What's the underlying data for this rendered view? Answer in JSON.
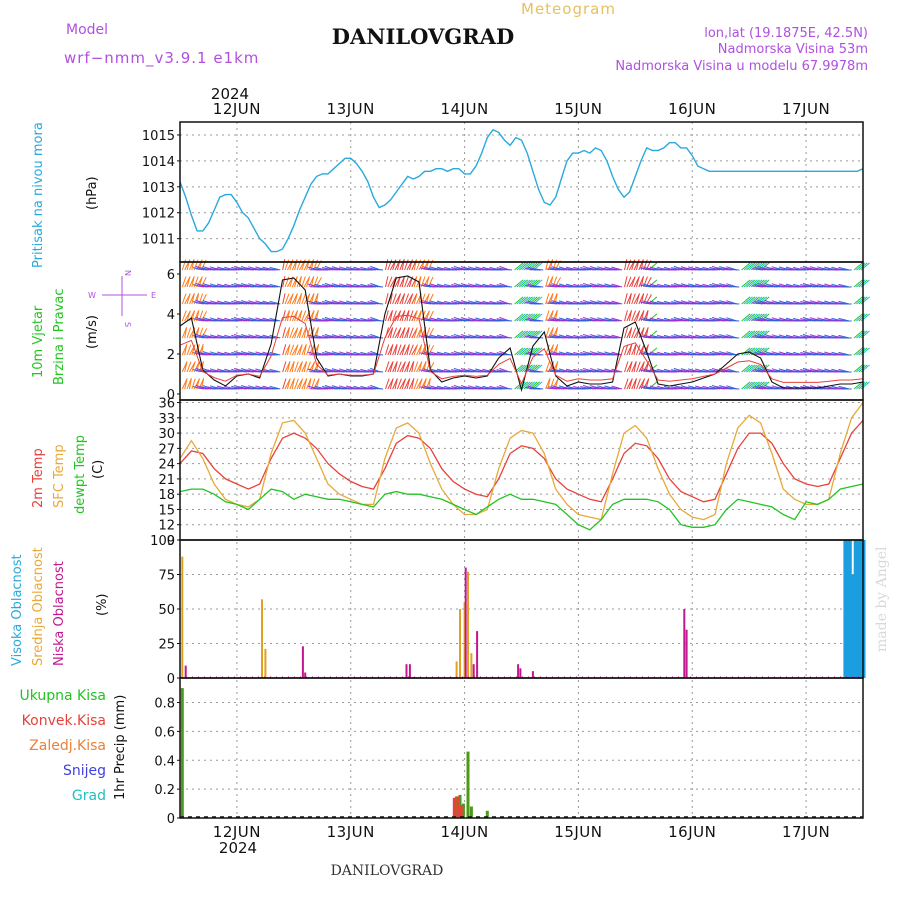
{
  "header": {
    "model_label": "Model",
    "model_name": "wrf−nmm_v3.9.1 e1km",
    "meteogram_label": "Meteogram",
    "station": "DANILOVGRAD",
    "coords": "lon,lat (19.1875E, 42.5N)",
    "elevation": "Nadmorska Visina 53m",
    "model_elevation": "Nadmorska Visina u modelu 67.9978m",
    "footer_station": "DANILOVGRAD",
    "credit": "made by Angel"
  },
  "colors": {
    "pressure": "#29a9df",
    "temp2m": "#e8413a",
    "sfc": "#e8a93a",
    "dewpt": "#22c422",
    "high_cloud": "#1a9ee0",
    "mid_cloud": "#e0a020",
    "low_cloud": "#c0188f",
    "precip_total": "#4c9a1c",
    "precip_conv": "#e8413a",
    "purple": "#b050e0"
  },
  "time_axis": {
    "year": "2024",
    "days": [
      "12JUN",
      "13JUN",
      "14JUN",
      "15JUN",
      "16JUN",
      "17JUN"
    ]
  },
  "panels": {
    "pressure": {
      "label1": "Pritisak na nivou mora",
      "unit": "(hPa)",
      "ticks": [
        "1011",
        "1012",
        "1013",
        "1014",
        "1015"
      ]
    },
    "wind": {
      "label1": "10m Vjetar",
      "label2": "Brzina i Pravac",
      "unit": "(m/s)",
      "ticks": [
        "0",
        "2",
        "4",
        "6"
      ],
      "compass_n": "N",
      "compass_s": "S",
      "compass_w": "W",
      "compass_e": "E"
    },
    "temperature": {
      "label1": "2m Temp",
      "label2": "SFC Temp",
      "label3": "dewpt Temp",
      "unit": "(C)",
      "ticks": [
        "9",
        "12",
        "15",
        "18",
        "21",
        "24",
        "27",
        "30",
        "33",
        "36"
      ]
    },
    "cloud": {
      "label1": "Visoka Oblacnost",
      "label2": "Srednja Oblacnost",
      "label3": "Niska Oblacnost",
      "unit": "(%)",
      "ticks": [
        "0",
        "25",
        "50",
        "75",
        "100"
      ]
    },
    "precip": {
      "legend": [
        "Ukupna Kisa",
        "Konvek.Kisa",
        "Zaledj.Kisa",
        "Snijeg",
        "Grad"
      ],
      "unit": "1hr Precip (mm)",
      "ticks": [
        "0",
        "0.2",
        "0.4",
        "0.6",
        "0.8"
      ]
    }
  },
  "chart_data": [
    {
      "type": "line",
      "title": "Pritisak na nivou mora",
      "ylabel": "(hPa)",
      "ylim": [
        1010.1,
        1015.5
      ],
      "x_range_days": [
        11.5,
        17.5
      ],
      "series": [
        {
          "name": "Pritisak na nivou mora",
          "x": [
            11.5,
            11.55,
            11.6,
            11.65,
            11.7,
            11.75,
            11.8,
            11.85,
            11.9,
            11.95,
            12.0,
            12.05,
            12.1,
            12.15,
            12.2,
            12.25,
            12.3,
            12.35,
            12.4,
            12.45,
            12.5,
            12.55,
            12.6,
            12.65,
            12.7,
            12.75,
            12.8,
            12.85,
            12.9,
            12.95,
            13.0,
            13.05,
            13.1,
            13.15,
            13.2,
            13.25,
            13.3,
            13.35,
            13.4,
            13.45,
            13.5,
            13.55,
            13.6,
            13.65,
            13.7,
            13.75,
            13.8,
            13.85,
            13.9,
            13.95,
            14.0,
            14.05,
            14.1,
            14.15,
            14.2,
            14.25,
            14.3,
            14.35,
            14.4,
            14.45,
            14.5,
            14.55,
            14.6,
            14.65,
            14.7,
            14.75,
            14.8,
            14.85,
            14.9,
            14.95,
            15.0,
            15.05,
            15.1,
            15.15,
            15.2,
            15.25,
            15.3,
            15.35,
            15.4,
            15.45,
            15.5,
            15.55,
            15.6,
            15.65,
            15.7,
            15.75,
            15.8,
            15.85,
            15.9,
            15.95,
            16.0,
            16.05,
            16.1,
            16.15,
            16.2,
            16.25,
            16.3,
            16.35,
            16.4,
            16.45,
            16.5,
            16.55,
            16.6,
            16.65,
            16.7,
            16.75,
            16.8,
            16.85,
            16.9,
            16.95,
            17.0,
            17.05,
            17.1,
            17.15,
            17.2,
            17.25,
            17.3,
            17.35,
            17.4,
            17.45,
            17.5
          ],
          "values": [
            1013.2,
            1012.6,
            1011.9,
            1011.3,
            1011.3,
            1011.6,
            1012.1,
            1012.6,
            1012.7,
            1012.7,
            1012.4,
            1012.0,
            1011.8,
            1011.4,
            1011.0,
            1010.8,
            1010.5,
            1010.5,
            1010.6,
            1011.0,
            1011.5,
            1012.1,
            1012.6,
            1013.1,
            1013.4,
            1013.5,
            1013.5,
            1013.7,
            1013.9,
            1014.1,
            1014.1,
            1013.9,
            1013.6,
            1013.2,
            1012.6,
            1012.2,
            1012.3,
            1012.5,
            1012.8,
            1013.1,
            1013.4,
            1013.3,
            1013.4,
            1013.6,
            1013.6,
            1013.7,
            1013.7,
            1013.6,
            1013.7,
            1013.7,
            1013.5,
            1013.5,
            1013.8,
            1014.3,
            1014.9,
            1015.2,
            1015.1,
            1014.8,
            1014.6,
            1014.9,
            1014.8,
            1014.3,
            1013.6,
            1012.9,
            1012.4,
            1012.3,
            1012.6,
            1013.3,
            1014.0,
            1014.3,
            1014.3,
            1014.4,
            1014.3,
            1014.5,
            1014.4,
            1014.0,
            1013.4,
            1012.9,
            1012.6,
            1012.8,
            1013.4,
            1014.0,
            1014.5,
            1014.4,
            1014.4,
            1014.5,
            1014.7,
            1014.7,
            1014.5,
            1014.5,
            1014.2,
            1013.8,
            1013.7,
            1013.6,
            1013.6,
            1013.6,
            1013.6,
            1013.6,
            1013.6,
            1013.6,
            1013.6,
            1013.6,
            1013.6,
            1013.6,
            1013.6,
            1013.6,
            1013.6,
            1013.6,
            1013.6,
            1013.6,
            1013.6,
            1013.6,
            1013.6,
            1013.6,
            1013.6,
            1013.6,
            1013.6,
            1013.6,
            1013.6,
            1013.6,
            1013.7
          ]
        }
      ]
    },
    {
      "type": "line",
      "title": "10m Vjetar Brzina i Pravac",
      "ylabel": "(m/s)",
      "ylim": [
        -0.3,
        6.6
      ],
      "series": [
        {
          "name": "Brzina",
          "x": [
            11.5,
            11.6,
            11.7,
            11.8,
            11.9,
            12.0,
            12.1,
            12.2,
            12.3,
            12.4,
            12.5,
            12.6,
            12.7,
            12.8,
            12.9,
            13.0,
            13.1,
            13.2,
            13.3,
            13.4,
            13.5,
            13.6,
            13.7,
            13.8,
            13.9,
            14.0,
            14.1,
            14.2,
            14.3,
            14.4,
            14.5,
            14.6,
            14.7,
            14.8,
            14.9,
            15.0,
            15.1,
            15.2,
            15.3,
            15.4,
            15.5,
            15.6,
            15.7,
            15.8,
            15.9,
            16.0,
            16.1,
            16.2,
            16.3,
            16.4,
            16.5,
            16.6,
            16.7,
            16.8,
            16.9,
            17.0,
            17.1,
            17.2,
            17.3,
            17.4,
            17.5
          ],
          "values": [
            3.4,
            3.8,
            1.2,
            0.7,
            0.4,
            0.9,
            1.0,
            0.8,
            2.5,
            5.7,
            5.8,
            5.2,
            1.8,
            0.9,
            1.0,
            0.9,
            0.9,
            1.0,
            4.0,
            5.8,
            5.9,
            5.6,
            1.2,
            0.6,
            0.8,
            0.9,
            0.8,
            0.9,
            1.8,
            2.3,
            0.2,
            2.4,
            3.1,
            0.9,
            0.4,
            0.6,
            0.5,
            0.5,
            0.6,
            3.3,
            3.6,
            2.1,
            0.5,
            0.4,
            0.5,
            0.6,
            0.8,
            1.0,
            1.5,
            2.0,
            2.1,
            1.8,
            0.6,
            0.3,
            0.3,
            0.3,
            0.3,
            0.4,
            0.5,
            0.5,
            0.6
          ]
        }
      ]
    },
    {
      "type": "line",
      "title": "2m Temp / SFC Temp / dewpt Temp",
      "ylabel": "(C)",
      "ylim": [
        9,
        36.5
      ],
      "series": [
        {
          "name": "2m Temp",
          "x": [
            11.5,
            11.6,
            11.7,
            11.8,
            11.9,
            12.0,
            12.1,
            12.2,
            12.3,
            12.4,
            12.5,
            12.6,
            12.7,
            12.8,
            12.9,
            13.0,
            13.1,
            13.2,
            13.3,
            13.4,
            13.5,
            13.6,
            13.7,
            13.8,
            13.9,
            14.0,
            14.1,
            14.2,
            14.3,
            14.4,
            14.5,
            14.6,
            14.7,
            14.8,
            14.9,
            15.0,
            15.1,
            15.2,
            15.3,
            15.4,
            15.5,
            15.6,
            15.7,
            15.8,
            15.9,
            16.0,
            16.1,
            16.2,
            16.3,
            16.4,
            16.5,
            16.6,
            16.7,
            16.8,
            16.9,
            17.0,
            17.1,
            17.2,
            17.3,
            17.4,
            17.5
          ],
          "values": [
            24,
            26.5,
            26,
            23,
            21,
            20,
            19,
            20,
            25,
            29,
            30,
            29,
            27,
            24,
            22,
            20.5,
            19.5,
            19,
            23,
            28,
            29.5,
            29,
            27,
            23,
            20.5,
            19,
            18,
            17.5,
            21,
            26,
            27.5,
            27,
            25,
            21,
            19,
            18,
            17,
            16.5,
            21,
            26,
            28,
            27.5,
            25,
            21,
            18.5,
            17.5,
            16.5,
            17,
            22,
            27,
            30,
            30,
            28,
            24,
            21,
            20,
            19.5,
            20,
            25,
            30,
            32.5
          ]
        },
        {
          "name": "SFC Temp",
          "x": [
            11.5,
            11.6,
            11.7,
            11.8,
            11.9,
            12.0,
            12.1,
            12.2,
            12.3,
            12.4,
            12.5,
            12.6,
            12.7,
            12.8,
            12.9,
            13.0,
            13.1,
            13.2,
            13.3,
            13.4,
            13.5,
            13.6,
            13.7,
            13.8,
            13.9,
            14.0,
            14.1,
            14.2,
            14.3,
            14.4,
            14.5,
            14.6,
            14.7,
            14.8,
            14.9,
            15.0,
            15.1,
            15.2,
            15.3,
            15.4,
            15.5,
            15.6,
            15.7,
            15.8,
            15.9,
            16.0,
            16.1,
            16.2,
            16.3,
            16.4,
            16.5,
            16.6,
            16.7,
            16.8,
            16.9,
            17.0,
            17.1,
            17.2,
            17.3,
            17.4,
            17.5
          ],
          "values": [
            25,
            28.5,
            25,
            20,
            17,
            16,
            15.5,
            17,
            26,
            32,
            32.5,
            30,
            25,
            20,
            18,
            17,
            16,
            16,
            25,
            31,
            32,
            30,
            24,
            19,
            16,
            14,
            14,
            15,
            23,
            29,
            30.5,
            30,
            26,
            19,
            16,
            14,
            13.5,
            13,
            22,
            30,
            31.5,
            29,
            23,
            18,
            15,
            13.5,
            13,
            14,
            24,
            31,
            33.5,
            32,
            26,
            19,
            17,
            16,
            16,
            17,
            26,
            33,
            36
          ]
        },
        {
          "name": "dewpt Temp",
          "x": [
            11.5,
            11.6,
            11.7,
            11.8,
            11.9,
            12.0,
            12.1,
            12.2,
            12.3,
            12.4,
            12.5,
            12.6,
            12.7,
            12.8,
            12.9,
            13.0,
            13.1,
            13.2,
            13.3,
            13.4,
            13.5,
            13.6,
            13.7,
            13.8,
            13.9,
            14.0,
            14.1,
            14.2,
            14.3,
            14.4,
            14.5,
            14.6,
            14.7,
            14.8,
            14.9,
            15.0,
            15.1,
            15.2,
            15.3,
            15.4,
            15.5,
            15.6,
            15.7,
            15.8,
            15.9,
            16.0,
            16.1,
            16.2,
            16.3,
            16.4,
            16.5,
            16.6,
            16.7,
            16.8,
            16.9,
            17.0,
            17.1,
            17.2,
            17.3,
            17.4,
            17.5
          ],
          "values": [
            18.5,
            19,
            19,
            18,
            16.5,
            16,
            15,
            17,
            19,
            18.5,
            17,
            18,
            17.5,
            17,
            17,
            16.5,
            16,
            15.5,
            18,
            18.5,
            18,
            18,
            17.5,
            17,
            16,
            15,
            14,
            15.5,
            17,
            18,
            17,
            17,
            16.5,
            16,
            14,
            12,
            11,
            13,
            16,
            17,
            17,
            17,
            16.5,
            15,
            12,
            11.5,
            11.5,
            12,
            15,
            17,
            16.5,
            16,
            15.5,
            14,
            13,
            16.5,
            16,
            17,
            19,
            19.5,
            20
          ]
        }
      ]
    },
    {
      "type": "bar",
      "title": "Visoka / Srednja / Niska Oblacnost",
      "ylabel": "(%)",
      "ylim": [
        0,
        100
      ],
      "series": [
        {
          "name": "Visoka Oblacnost",
          "x": [
            17.35,
            17.38,
            17.41,
            17.44,
            17.47,
            17.5
          ],
          "values": [
            100,
            100,
            75,
            100,
            100,
            100
          ]
        },
        {
          "name": "Srednja Oblacnost",
          "x": [
            11.52,
            12.22,
            12.25,
            13.93,
            13.96,
            14.0,
            14.03,
            14.06
          ],
          "values": [
            88,
            57,
            21,
            12,
            50,
            55,
            77,
            18
          ]
        },
        {
          "name": "Niska Oblacnost",
          "x": [
            11.55,
            12.58,
            12.6,
            13.49,
            13.52,
            14.01,
            14.08,
            14.11,
            14.47,
            14.49,
            14.6,
            15.93,
            15.95
          ],
          "values": [
            9,
            23,
            4,
            10,
            10,
            80,
            10,
            34,
            10,
            7,
            5,
            50,
            35
          ]
        }
      ]
    },
    {
      "type": "bar",
      "title": "1hr Precip",
      "ylabel": "1hr Precip (mm)",
      "ylim": [
        0,
        0.97
      ],
      "series": [
        {
          "name": "Ukupna Kisa",
          "x": [
            11.52,
            13.93,
            13.96,
            13.99,
            14.03,
            14.06,
            14.2
          ],
          "values": [
            0.9,
            0.15,
            0.16,
            0.1,
            0.46,
            0.08,
            0.05
          ]
        },
        {
          "name": "Konvek.Kisa",
          "x": [
            13.91,
            13.94,
            13.97
          ],
          "values": [
            0.14,
            0.15,
            0.09
          ]
        }
      ]
    }
  ]
}
